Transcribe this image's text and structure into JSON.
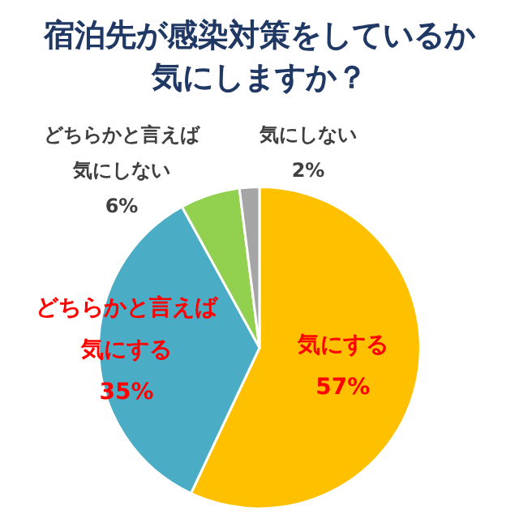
{
  "chart_data": {
    "type": "pie",
    "title": "宿泊先が感染対策をしているか気にしますか？",
    "categories": [
      "気にする",
      "どちらかと言えば気にする",
      "どちらかと言えば気にしない",
      "気にしない"
    ],
    "values": [
      57,
      35,
      6,
      2
    ],
    "colors": [
      "#ffc000",
      "#4bacc6",
      "#92d050",
      "#a5a5a5"
    ],
    "value_labels": [
      "57%",
      "35%",
      "6%",
      "2%"
    ],
    "legend": false
  }
}
